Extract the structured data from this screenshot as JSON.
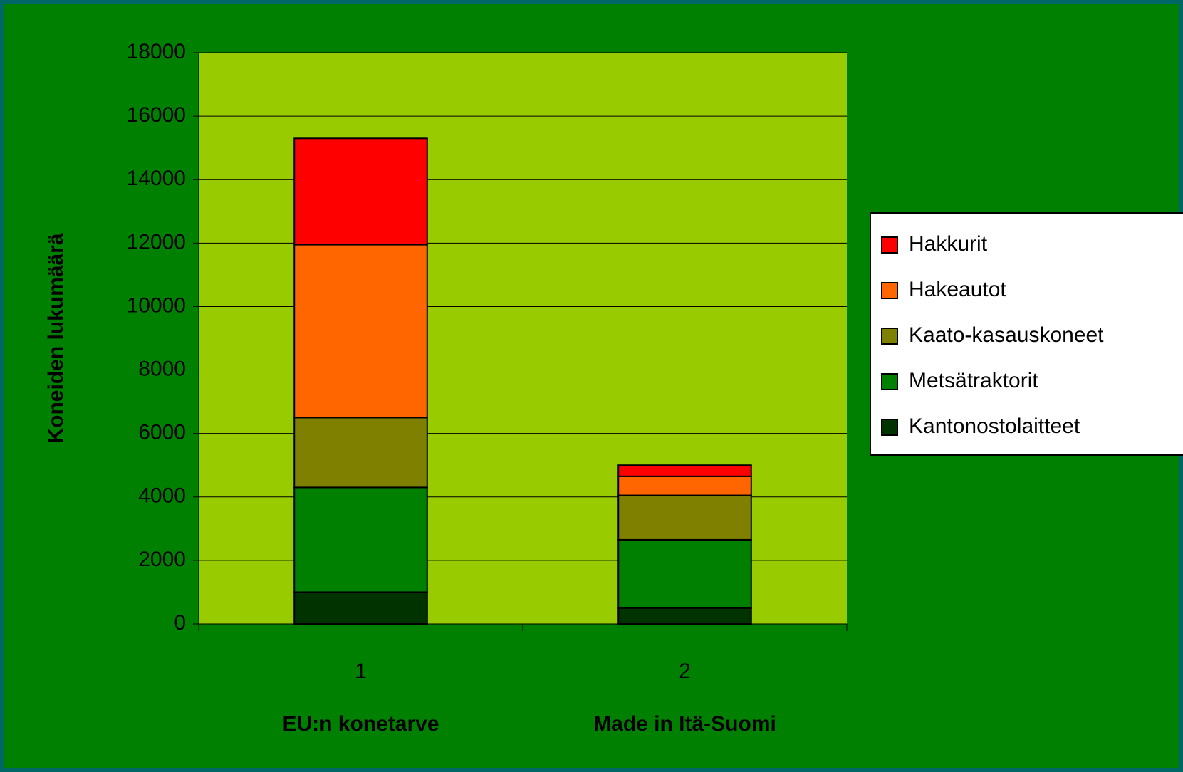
{
  "chart_data": {
    "type": "stacked_bar",
    "y_axis_label": "Koneiden lukumäärä",
    "categories": [
      "1",
      "2"
    ],
    "category_labels": [
      "EU:n konetarve",
      "Made in Itä-Suomi"
    ],
    "series": [
      {
        "name": "Kantonostolaitteet",
        "color": "#003300",
        "values": [
          1000,
          500
        ]
      },
      {
        "name": "Metsätraktorit",
        "color": "#008000",
        "values": [
          3300,
          2150
        ]
      },
      {
        "name": "Kaato-kasauskoneet",
        "color": "#808000",
        "values": [
          2200,
          1400
        ]
      },
      {
        "name": "Hakeautot",
        "color": "#FF6600",
        "values": [
          5450,
          600
        ]
      },
      {
        "name": "Hakkurit",
        "color": "#FF0000",
        "values": [
          3350,
          350
        ]
      }
    ],
    "ylim": [
      0,
      18000
    ],
    "yticks": [
      0,
      2000,
      4000,
      6000,
      8000,
      10000,
      12000,
      14000,
      16000,
      18000
    ],
    "grid": true,
    "legend": "right"
  }
}
